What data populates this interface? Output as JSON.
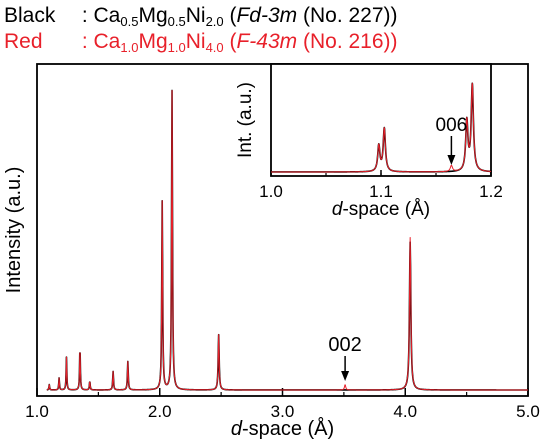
{
  "legend": {
    "black": {
      "name": "Black",
      "sep": " : ",
      "formula": [
        [
          "Ca",
          "0.5"
        ],
        [
          "Mg",
          "0.5"
        ],
        [
          "Ni",
          "2.0"
        ]
      ],
      "group_italic": "Fd-3m",
      "group_number": " (No. 227))",
      "open": " (",
      "color": "#000000"
    },
    "red": {
      "name": "Red",
      "sep": " : ",
      "formula": [
        [
          "Ca",
          "1.0"
        ],
        [
          "Mg",
          "1.0"
        ],
        [
          "Ni",
          "4.0"
        ]
      ],
      "group_italic": "F-43m",
      "group_number": " (No. 216))",
      "open": " (",
      "color": "#e8202a"
    }
  },
  "chart_data": [
    {
      "type": "line",
      "panel": "main",
      "xlabel_italic": "d",
      "xlabel_rest": "-space (Å)",
      "ylabel": "Intensity (a.u.)",
      "xlim": [
        1.0,
        5.0
      ],
      "ylim": [
        0,
        1.0
      ],
      "xticks": [
        "1.0",
        "2.0",
        "3.0",
        "4.0",
        "5.0"
      ],
      "series": [
        {
          "color": "#000000",
          "peaks": [
            [
              1.1,
              0.018
            ],
            [
              1.18,
              0.04
            ],
            [
              1.24,
              0.11
            ],
            [
              1.35,
              0.145
            ],
            [
              1.43,
              0.03
            ],
            [
              1.62,
              0.062
            ],
            [
              1.74,
              0.095
            ],
            [
              2.02,
              0.63
            ],
            [
              2.1,
              1.0
            ],
            [
              2.48,
              0.185
            ],
            [
              4.04,
              0.495
            ]
          ]
        },
        {
          "color": "#e8202a",
          "peaks": [
            [
              1.1,
              0.018
            ],
            [
              1.18,
              0.04
            ],
            [
              1.24,
              0.11
            ],
            [
              1.35,
              0.145
            ],
            [
              1.43,
              0.03
            ],
            [
              1.62,
              0.062
            ],
            [
              1.74,
              0.095
            ],
            [
              2.02,
              0.63
            ],
            [
              2.1,
              1.0
            ],
            [
              2.48,
              0.185
            ],
            [
              3.51,
              0.018
            ],
            [
              4.04,
              0.51
            ]
          ]
        }
      ],
      "annotation": {
        "label": "002",
        "x": 3.51
      }
    },
    {
      "type": "line",
      "panel": "inset",
      "xlabel_italic": "d",
      "xlabel_rest": "-space (Å)",
      "ylabel": "Int. (a.u.)",
      "xlim": [
        1.0,
        1.2
      ],
      "ylim": [
        0,
        1.0
      ],
      "xticks": [
        "1.0",
        "1.1",
        "1.2"
      ],
      "series": [
        {
          "color": "#000000",
          "peaks": [
            [
              1.098,
              0.3
            ],
            [
              1.103,
              0.5
            ],
            [
              1.178,
              0.58
            ],
            [
              1.183,
              1.0
            ]
          ]
        },
        {
          "color": "#e8202a",
          "peaks": [
            [
              1.098,
              0.3
            ],
            [
              1.103,
              0.5
            ],
            [
              1.164,
              0.07
            ],
            [
              1.178,
              0.58
            ],
            [
              1.183,
              1.0
            ]
          ]
        }
      ],
      "annotation": {
        "label": "006",
        "x": 1.164
      }
    }
  ]
}
